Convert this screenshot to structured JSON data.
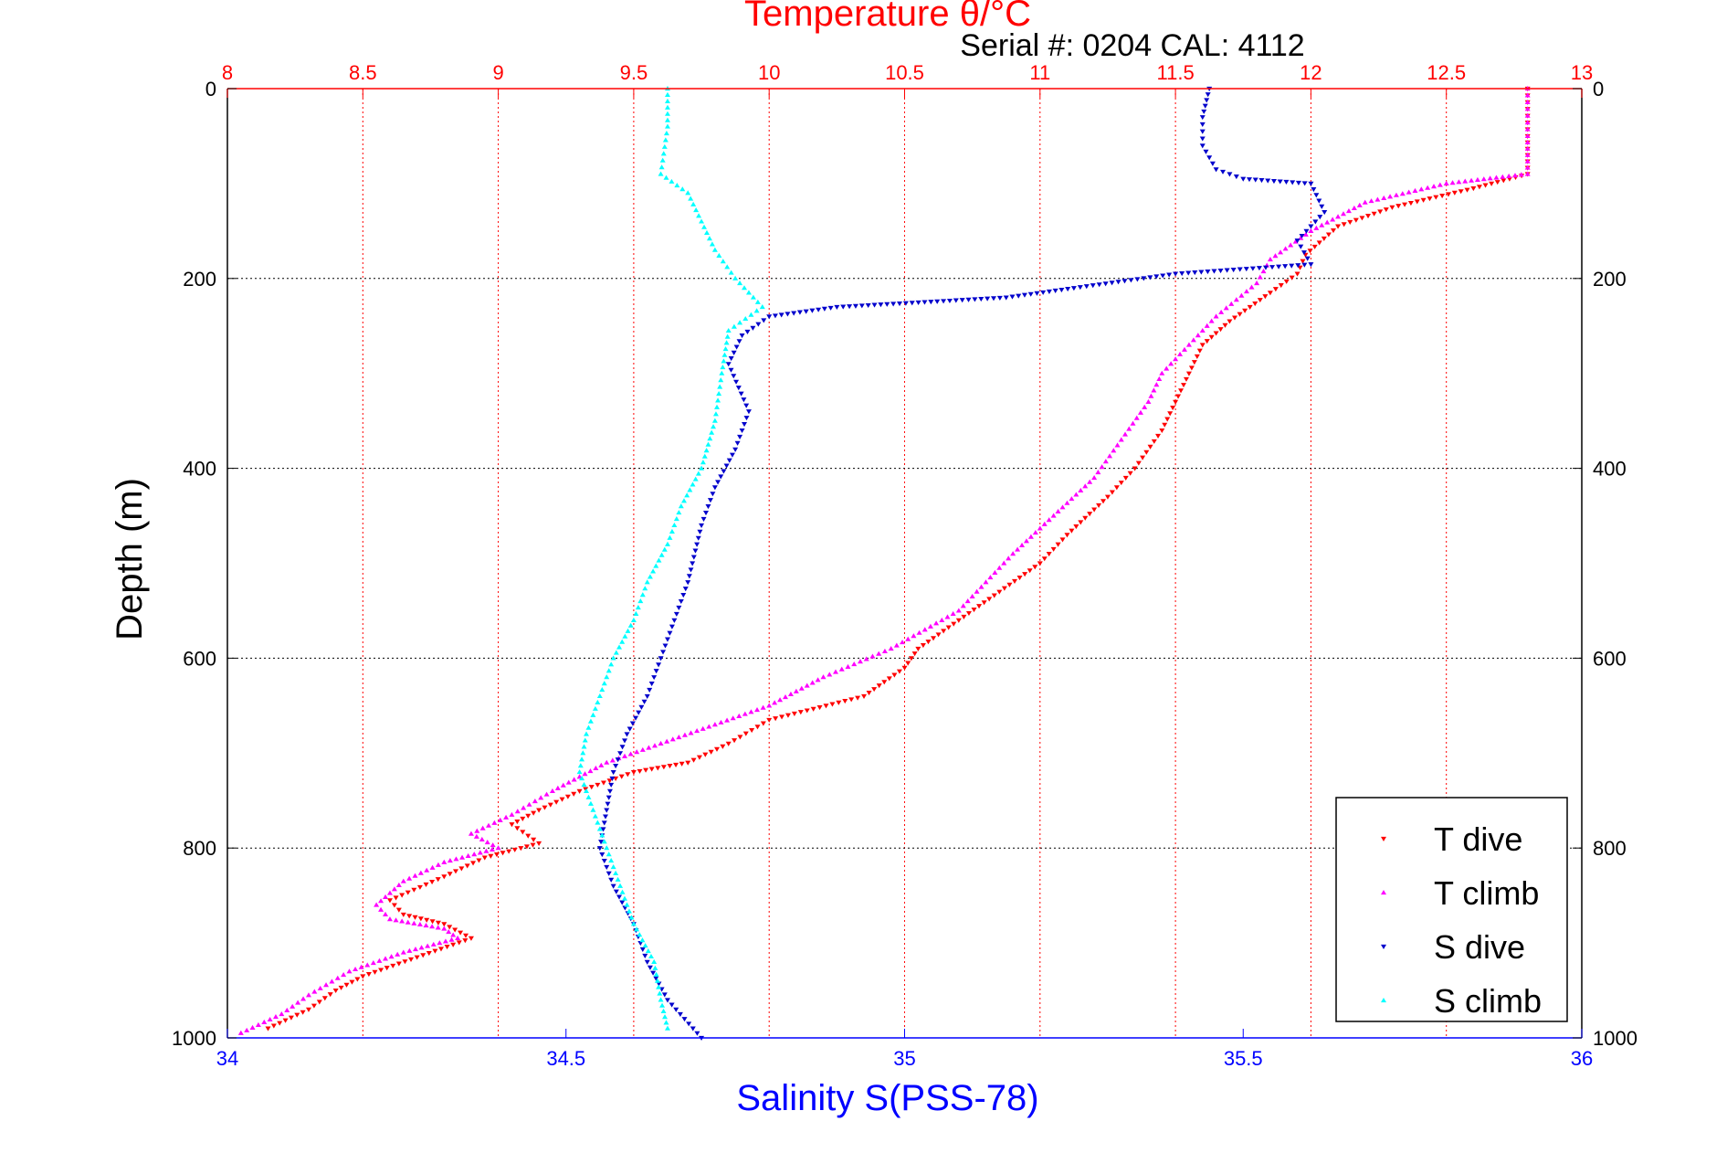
{
  "chart_data": {
    "type": "scatter",
    "title": "Temperature θ/°C",
    "subtitle": "Serial #: 0204  CAL: 4112",
    "ylabel": "Depth (m)",
    "xlabel": "Salinity S(PSS-78)",
    "legend_position": "bottom-right",
    "grid": true,
    "colors": {
      "temperature_axis": "#ff0000",
      "salinity_axis": "#0000ff",
      "depth_axis": "#000000",
      "T dive": "#ff0000",
      "T climb": "#ff00ff",
      "S dive": "#0000cc",
      "S climb": "#00ffff"
    },
    "axes": {
      "depth": {
        "range": [
          0,
          1000
        ],
        "reversed": true,
        "ticks": [
          "0",
          "200",
          "400",
          "600",
          "800",
          "1000"
        ]
      },
      "temperature": {
        "range": [
          8,
          13
        ],
        "ticks": [
          "8",
          "8.5",
          "9",
          "9.5",
          "10",
          "10.5",
          "11",
          "11.5",
          "12",
          "12.5",
          "13"
        ]
      },
      "salinity": {
        "range": [
          34,
          36
        ],
        "ticks": [
          "34",
          "34.5",
          "35",
          "35.5",
          "36"
        ]
      }
    },
    "series": [
      {
        "name": "T dive",
        "axis": "temperature",
        "marker": "triangle-down",
        "points": [
          [
            12.8,
            0
          ],
          [
            12.8,
            50
          ],
          [
            12.8,
            90
          ],
          [
            12.6,
            105
          ],
          [
            12.3,
            125
          ],
          [
            12.1,
            145
          ],
          [
            11.98,
            175
          ],
          [
            11.95,
            195
          ],
          [
            11.85,
            215
          ],
          [
            11.7,
            245
          ],
          [
            11.6,
            270
          ],
          [
            11.55,
            300
          ],
          [
            11.5,
            330
          ],
          [
            11.45,
            360
          ],
          [
            11.35,
            400
          ],
          [
            11.25,
            430
          ],
          [
            11.1,
            470
          ],
          [
            11.0,
            500
          ],
          [
            10.85,
            530
          ],
          [
            10.7,
            560
          ],
          [
            10.55,
            590
          ],
          [
            10.5,
            610
          ],
          [
            10.35,
            640
          ],
          [
            10.0,
            665
          ],
          [
            9.85,
            690
          ],
          [
            9.7,
            710
          ],
          [
            9.5,
            720
          ],
          [
            9.3,
            740
          ],
          [
            9.15,
            760
          ],
          [
            9.05,
            775
          ],
          [
            9.15,
            795
          ],
          [
            8.95,
            810
          ],
          [
            8.8,
            830
          ],
          [
            8.6,
            855
          ],
          [
            8.65,
            870
          ],
          [
            8.8,
            880
          ],
          [
            8.9,
            895
          ],
          [
            8.7,
            915
          ],
          [
            8.5,
            935
          ],
          [
            8.4,
            950
          ],
          [
            8.3,
            970
          ],
          [
            8.15,
            990
          ]
        ]
      },
      {
        "name": "T climb",
        "axis": "temperature",
        "marker": "triangle-up",
        "points": [
          [
            12.8,
            0
          ],
          [
            12.8,
            50
          ],
          [
            12.8,
            90
          ],
          [
            12.5,
            100
          ],
          [
            12.2,
            120
          ],
          [
            12.0,
            150
          ],
          [
            11.85,
            180
          ],
          [
            11.8,
            205
          ],
          [
            11.65,
            240
          ],
          [
            11.55,
            270
          ],
          [
            11.45,
            300
          ],
          [
            11.4,
            330
          ],
          [
            11.3,
            370
          ],
          [
            11.2,
            410
          ],
          [
            11.05,
            450
          ],
          [
            10.9,
            490
          ],
          [
            10.8,
            520
          ],
          [
            10.7,
            550
          ],
          [
            10.45,
            590
          ],
          [
            10.2,
            620
          ],
          [
            10.0,
            650
          ],
          [
            9.8,
            670
          ],
          [
            9.6,
            690
          ],
          [
            9.4,
            710
          ],
          [
            9.2,
            740
          ],
          [
            9.05,
            765
          ],
          [
            8.9,
            785
          ],
          [
            9.0,
            800
          ],
          [
            8.8,
            815
          ],
          [
            8.65,
            835
          ],
          [
            8.55,
            860
          ],
          [
            8.6,
            875
          ],
          [
            8.8,
            885
          ],
          [
            8.85,
            895
          ],
          [
            8.65,
            910
          ],
          [
            8.45,
            930
          ],
          [
            8.3,
            955
          ],
          [
            8.2,
            975
          ],
          [
            8.05,
            995
          ]
        ]
      },
      {
        "name": "S dive",
        "axis": "salinity",
        "marker": "triangle-down",
        "points": [
          [
            35.45,
            0
          ],
          [
            35.44,
            30
          ],
          [
            35.44,
            60
          ],
          [
            35.46,
            85
          ],
          [
            35.5,
            95
          ],
          [
            35.6,
            100
          ],
          [
            35.62,
            130
          ],
          [
            35.58,
            160
          ],
          [
            35.6,
            185
          ],
          [
            35.4,
            195
          ],
          [
            35.25,
            210
          ],
          [
            35.15,
            220
          ],
          [
            34.9,
            230
          ],
          [
            34.8,
            240
          ],
          [
            34.76,
            260
          ],
          [
            34.74,
            290
          ],
          [
            34.77,
            340
          ],
          [
            34.75,
            380
          ],
          [
            34.72,
            420
          ],
          [
            34.7,
            460
          ],
          [
            34.68,
            520
          ],
          [
            34.66,
            560
          ],
          [
            34.64,
            600
          ],
          [
            34.62,
            640
          ],
          [
            34.59,
            680
          ],
          [
            34.57,
            720
          ],
          [
            34.56,
            760
          ],
          [
            34.55,
            800
          ],
          [
            34.57,
            840
          ],
          [
            34.6,
            880
          ],
          [
            34.62,
            920
          ],
          [
            34.65,
            960
          ],
          [
            34.7,
            1000
          ]
        ]
      },
      {
        "name": "S climb",
        "axis": "salinity",
        "marker": "triangle-up",
        "points": [
          [
            34.65,
            0
          ],
          [
            34.65,
            40
          ],
          [
            34.64,
            90
          ],
          [
            34.68,
            110
          ],
          [
            34.7,
            140
          ],
          [
            34.72,
            170
          ],
          [
            34.75,
            200
          ],
          [
            34.79,
            230
          ],
          [
            34.74,
            255
          ],
          [
            34.73,
            300
          ],
          [
            34.72,
            350
          ],
          [
            34.7,
            400
          ],
          [
            34.67,
            440
          ],
          [
            34.65,
            480
          ],
          [
            34.62,
            520
          ],
          [
            34.6,
            560
          ],
          [
            34.57,
            600
          ],
          [
            34.55,
            640
          ],
          [
            34.53,
            680
          ],
          [
            34.52,
            720
          ],
          [
            34.54,
            760
          ],
          [
            34.56,
            800
          ],
          [
            34.58,
            840
          ],
          [
            34.6,
            880
          ],
          [
            34.63,
            920
          ],
          [
            34.64,
            960
          ],
          [
            34.65,
            990
          ]
        ]
      }
    ],
    "legend": [
      "T dive",
      "T climb",
      "S dive",
      "S climb"
    ]
  }
}
